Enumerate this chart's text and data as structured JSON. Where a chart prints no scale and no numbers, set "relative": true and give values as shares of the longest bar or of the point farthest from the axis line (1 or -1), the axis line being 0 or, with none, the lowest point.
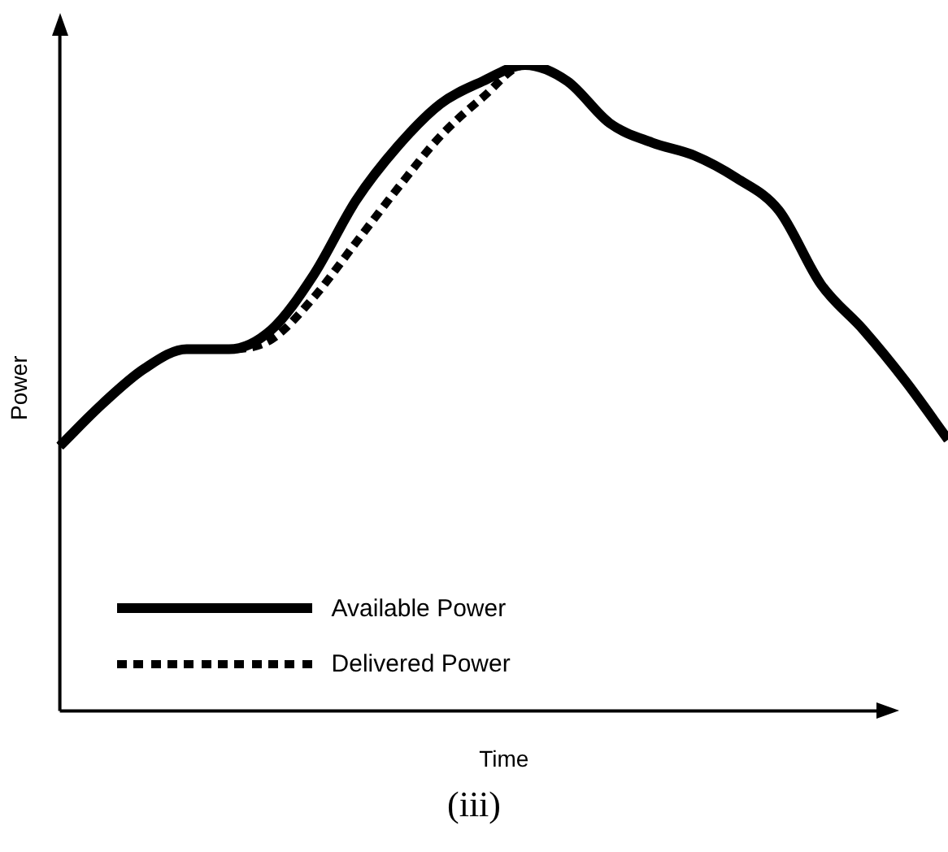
{
  "chart_data": {
    "type": "line",
    "relative": true,
    "xlabel": "Time",
    "ylabel": "Power",
    "legend": "bottom left",
    "marker": "none",
    "categories": [
      null,
      null,
      null,
      null,
      null,
      null,
      null,
      null,
      null,
      null,
      null,
      null,
      null,
      null,
      null,
      null,
      null,
      null,
      null,
      null,
      null,
      null
    ],
    "series": [
      {
        "name": "Available Power",
        "color": "#000000",
        "line_style": "solid",
        "values": [
          0.41,
          0.475,
          0.53,
          0.56,
          0.56,
          0.59,
          0.675,
          0.79,
          0.875,
          0.94,
          0.975,
          1.0,
          0.975,
          0.91,
          0.88,
          0.86,
          0.825,
          0.775,
          0.66,
          0.59,
          0.51,
          0.42
        ]
      },
      {
        "name": "Delivered Power",
        "color": "#000000",
        "line_style": "dotted",
        "values": [
          0.41,
          0.475,
          0.53,
          0.56,
          0.56,
          0.575,
          0.64,
          0.725,
          0.81,
          0.89,
          0.95,
          1.0,
          0.975,
          0.91,
          0.88,
          0.86,
          0.825,
          0.775,
          0.66,
          0.59,
          0.51,
          0.42
        ]
      }
    ],
    "annotations": [
      "(iii)"
    ]
  }
}
